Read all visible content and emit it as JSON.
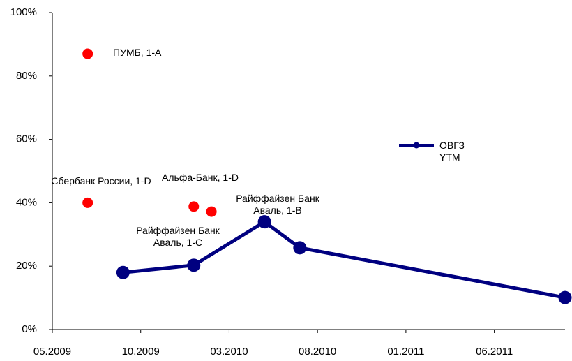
{
  "chart_data": {
    "type": "line",
    "xlim": [
      "2009-05",
      "2011-10"
    ],
    "xticks": [
      {
        "value": "2009-05",
        "label": "05.2009"
      },
      {
        "value": "2009-10",
        "label": "10.2009"
      },
      {
        "value": "2010-03",
        "label": "03.2010"
      },
      {
        "value": "2010-08",
        "label": "08.2010"
      },
      {
        "value": "2011-01",
        "label": "01.2011"
      },
      {
        "value": "2011-06",
        "label": "06.2011"
      }
    ],
    "ylim": [
      0,
      100
    ],
    "yticks": [
      {
        "value": 0,
        "label": "0%"
      },
      {
        "value": 20,
        "label": "20%"
      },
      {
        "value": 40,
        "label": "40%"
      },
      {
        "value": 60,
        "label": "60%"
      },
      {
        "value": 80,
        "label": "80%"
      },
      {
        "value": 100,
        "label": "100%"
      }
    ],
    "series": [
      {
        "type": "scatter",
        "color": "#ff0000",
        "x": [
          "2009-07",
          "2009-07",
          "2010-01",
          "2010-02"
        ],
        "values": [
          87,
          40,
          38.8,
          37.2
        ]
      },
      {
        "type": "line",
        "name": "ОВГЗ YTM",
        "color": "#000080",
        "x": [
          "2009-09",
          "2010-01",
          "2010-05",
          "2010-07",
          "2011-10"
        ],
        "values": [
          18,
          20.3,
          34,
          25.8,
          10.1
        ]
      }
    ],
    "annotations": [
      "ПУМБ, 1-А",
      "Сбербанк России, 1-D",
      "Альфа-Банк, 1-D",
      "Райффайзен Банк Аваль, 1-С",
      "Райффайзен Банк Аваль, 1-В"
    ],
    "legend": "right"
  }
}
